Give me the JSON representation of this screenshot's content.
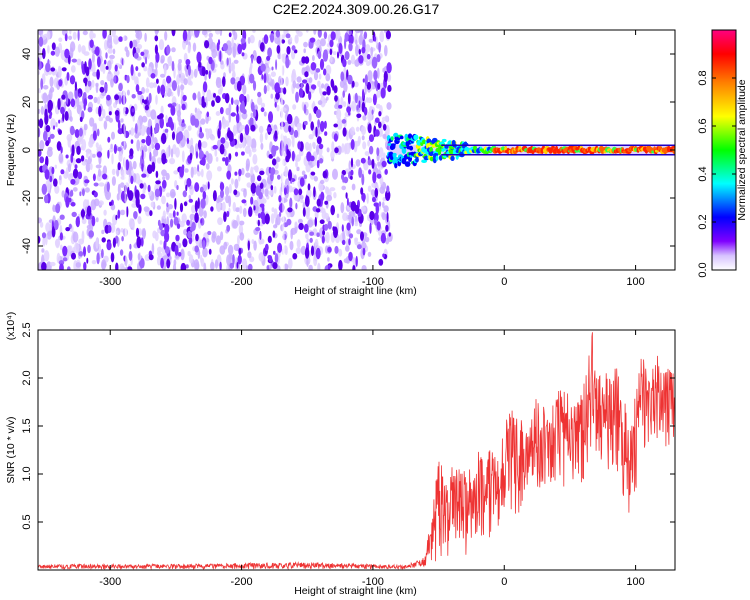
{
  "title": "C2E2.2024.309.00.26.G17",
  "chart_data": [
    {
      "type": "heatmap",
      "name": "spectrogram",
      "xlabel": "Height of straight line (km)",
      "ylabel": "Frequency (Hz)",
      "xlim": [
        -355,
        130
      ],
      "ylim": [
        -50,
        50
      ],
      "xticks": [
        -300,
        -200,
        -100,
        0,
        100
      ],
      "xtick_labels": [
        "-300",
        "-200",
        "-100",
        "0",
        "100"
      ],
      "yticks": [
        -40,
        -20,
        0,
        20,
        40
      ],
      "ytick_labels": [
        "-40",
        "-20",
        "0",
        "20",
        "40"
      ],
      "noise_region_x": [
        -355,
        -87
      ],
      "signal": {
        "onset_x": -88,
        "center_frequency": 0,
        "spread_near_onset": 7,
        "spread_far": 2
      },
      "colorbar": {
        "label": "Normalized spectral amplitude",
        "range": [
          0.0,
          1.0
        ],
        "ticks": [
          0.0,
          0.2,
          0.4,
          0.6,
          0.8
        ],
        "tick_labels": [
          "0.0",
          "0.2",
          "0.4",
          "0.6",
          "0.8"
        ],
        "colormap": [
          "#ffffff",
          "#7f00ff",
          "#0000ff",
          "#00ffff",
          "#00ff00",
          "#ffff00",
          "#ff8000",
          "#ff0000",
          "#ff0080"
        ]
      }
    },
    {
      "type": "line",
      "name": "snr",
      "xlabel": "Height of straight line (km)",
      "ylabel": "SNR (10 * v/v)",
      "multiplier_label": "(x10⁴)",
      "xlim": [
        -355,
        130
      ],
      "ylim": [
        0,
        2.5
      ],
      "xticks": [
        -300,
        -200,
        -100,
        0,
        100
      ],
      "xtick_labels": [
        "-300",
        "-200",
        "-100",
        "0",
        "100"
      ],
      "yticks": [
        0.5,
        1.0,
        1.5,
        2.0,
        2.5
      ],
      "ytick_labels": [
        "0.5",
        "1.0",
        "1.5",
        "2.0",
        "2.5"
      ],
      "color": "#ee3333",
      "series": [
        {
          "name": "SNR",
          "x": [
            -355,
            -300,
            -250,
            -200,
            -150,
            -100,
            -75,
            -62,
            -55,
            -50,
            -45,
            -40,
            -35,
            -30,
            -25,
            -20,
            -15,
            -10,
            -5,
            0,
            5,
            10,
            15,
            20,
            25,
            30,
            35,
            40,
            45,
            50,
            55,
            60,
            65,
            67,
            70,
            75,
            80,
            85,
            90,
            95,
            98,
            100,
            105,
            110,
            115,
            120,
            125,
            130
          ],
          "envelope_upper": [
            0.06,
            0.06,
            0.06,
            0.07,
            0.08,
            0.06,
            0.05,
            0.12,
            0.6,
            1.2,
            0.95,
            1.1,
            1.2,
            1.1,
            1.05,
            1.25,
            1.2,
            1.3,
            1.2,
            1.5,
            1.7,
            1.65,
            1.5,
            1.6,
            1.85,
            1.7,
            1.6,
            1.9,
            1.9,
            2.0,
            1.9,
            1.95,
            2.35,
            2.5,
            2.1,
            2.0,
            2.1,
            2.2,
            1.9,
            1.5,
            1.6,
            1.9,
            2.3,
            2.0,
            2.2,
            2.3,
            2.1,
            2.05
          ],
          "envelope_lower": [
            0.01,
            0.01,
            0.01,
            0.01,
            0.01,
            0.01,
            0.01,
            0.03,
            0.05,
            0.1,
            0.1,
            0.15,
            0.1,
            0.15,
            0.15,
            0.25,
            0.25,
            0.3,
            0.35,
            0.45,
            0.55,
            0.55,
            0.7,
            0.8,
            0.75,
            0.8,
            0.9,
            0.9,
            0.8,
            0.9,
            0.9,
            0.9,
            1.1,
            1.3,
            1.0,
            1.0,
            1.0,
            0.9,
            0.7,
            0.45,
            0.5,
            0.8,
            1.2,
            1.3,
            1.3,
            1.5,
            0.95,
            1.4
          ]
        }
      ]
    }
  ]
}
